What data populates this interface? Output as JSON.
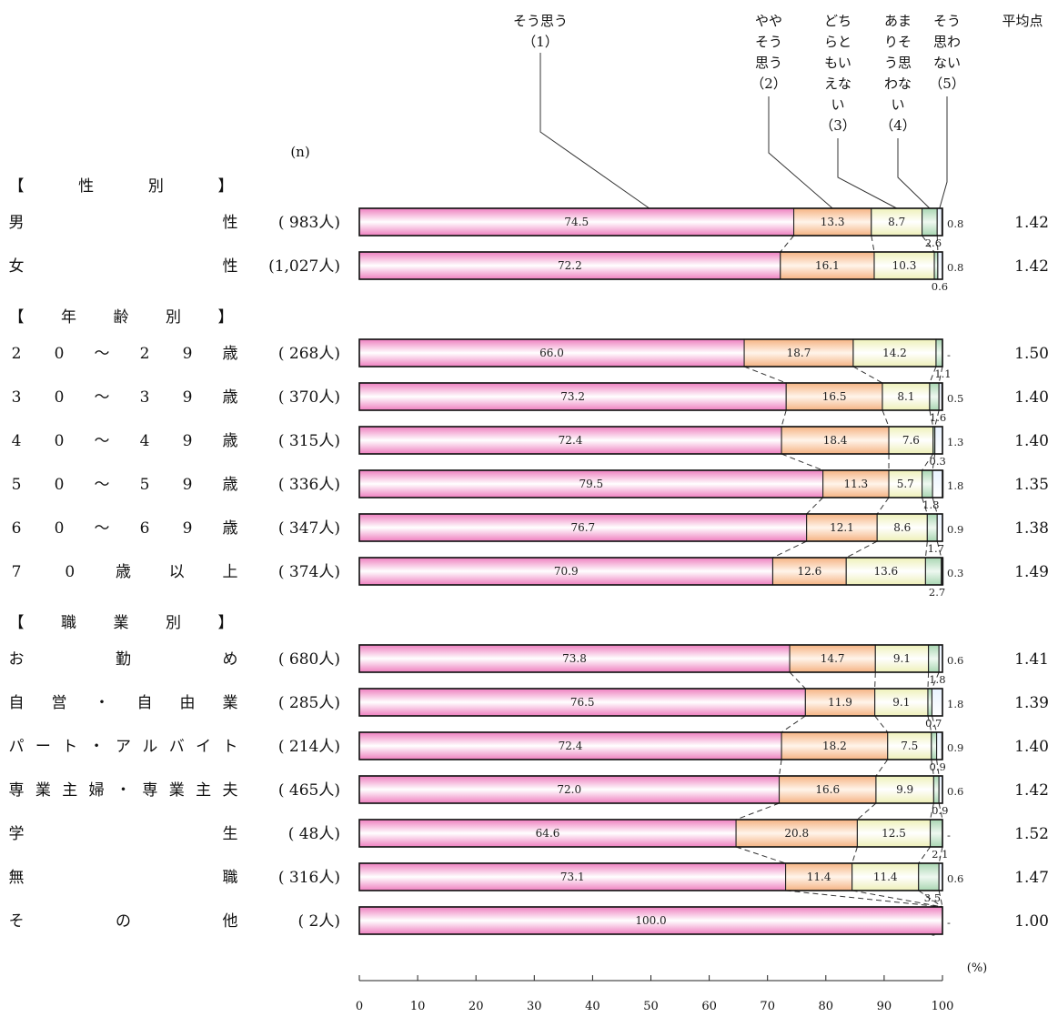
{
  "chart_data": {
    "type": "bar",
    "orientation": "horizontal",
    "stacked": true,
    "n_header": "(n)",
    "mean_header": "平均点",
    "unit_label": "(%)",
    "xlim": [
      0,
      100
    ],
    "x_ticks": [
      "0",
      "10",
      "20",
      "30",
      "40",
      "50",
      "60",
      "70",
      "80",
      "90",
      "100"
    ],
    "legend": [
      {
        "lines": [
          "そう思う",
          "（1）"
        ],
        "color": "#f7bfdc"
      },
      {
        "lines": [
          "やや",
          "そう",
          "思う",
          "（2）"
        ],
        "color": "#fbd6b8"
      },
      {
        "lines": [
          "どち",
          "らと",
          "もい",
          "えな",
          "い",
          "（3）"
        ],
        "color": "#fafadf"
      },
      {
        "lines": [
          "あま",
          "りそ",
          "う思",
          "わな",
          "い",
          "（4）"
        ],
        "color": "#cfe8d2"
      },
      {
        "lines": [
          "そう",
          "思わ",
          "ない",
          "（5）"
        ],
        "color": "#ffffff"
      }
    ],
    "groups": [
      {
        "header": {
          "chars": [
            "【",
            "性",
            "別",
            "】"
          ]
        },
        "rows": [
          {
            "chars": [
              "男",
              "性"
            ],
            "n": "( 983人)",
            "values": [
              74.5,
              13.3,
              8.7,
              2.6,
              0.8
            ],
            "labels": [
              "74.5",
              "13.3",
              "8.7",
              "2.6",
              "0.8"
            ],
            "mean": "1.42"
          },
          {
            "chars": [
              "女",
              "性"
            ],
            "n": "(1,027人)",
            "values": [
              72.2,
              16.1,
              10.3,
              0.6,
              0.8
            ],
            "labels": [
              "72.2",
              "16.1",
              "10.3",
              "0.6",
              "0.8"
            ],
            "mean": "1.42"
          }
        ]
      },
      {
        "header": {
          "chars": [
            "【",
            "年",
            "齢",
            "別",
            "】"
          ]
        },
        "rows": [
          {
            "chars": [
              "2",
              "0",
              "～",
              "2",
              "9",
              "歳"
            ],
            "n": "( 268人)",
            "values": [
              66.0,
              18.7,
              14.2,
              1.1,
              0
            ],
            "labels": [
              "66.0",
              "18.7",
              "14.2",
              "1.1",
              "-"
            ],
            "mean": "1.50"
          },
          {
            "chars": [
              "3",
              "0",
              "～",
              "3",
              "9",
              "歳"
            ],
            "n": "( 370人)",
            "values": [
              73.2,
              16.5,
              8.1,
              1.6,
              0.5
            ],
            "labels": [
              "73.2",
              "16.5",
              "8.1",
              "1.6",
              "0.5"
            ],
            "mean": "1.40"
          },
          {
            "chars": [
              "4",
              "0",
              "～",
              "4",
              "9",
              "歳"
            ],
            "n": "( 315人)",
            "values": [
              72.4,
              18.4,
              7.6,
              0.3,
              1.3
            ],
            "labels": [
              "72.4",
              "18.4",
              "7.6",
              "0.3",
              "1.3"
            ],
            "mean": "1.40"
          },
          {
            "chars": [
              "5",
              "0",
              "～",
              "5",
              "9",
              "歳"
            ],
            "n": "( 336人)",
            "values": [
              79.5,
              11.3,
              5.7,
              1.8,
              1.8
            ],
            "labels": [
              "79.5",
              "11.3",
              "5.7",
              "1.8",
              "1.8"
            ],
            "mean": "1.35"
          },
          {
            "chars": [
              "6",
              "0",
              "～",
              "6",
              "9",
              "歳"
            ],
            "n": "( 347人)",
            "values": [
              76.7,
              12.1,
              8.6,
              1.7,
              0.9
            ],
            "labels": [
              "76.7",
              "12.1",
              "8.6",
              "1.7",
              "0.9"
            ],
            "mean": "1.38"
          },
          {
            "chars": [
              "7",
              "0",
              "歳",
              "以",
              "上"
            ],
            "n": "( 374人)",
            "values": [
              70.9,
              12.6,
              13.6,
              2.7,
              0.3
            ],
            "labels": [
              "70.9",
              "12.6",
              "13.6",
              "2.7",
              "0.3"
            ],
            "mean": "1.49"
          }
        ]
      },
      {
        "header": {
          "chars": [
            "【",
            "職",
            "業",
            "別",
            "】"
          ]
        },
        "rows": [
          {
            "chars": [
              "お",
              "勤",
              "め"
            ],
            "n": "( 680人)",
            "values": [
              73.8,
              14.7,
              9.1,
              1.8,
              0.6
            ],
            "labels": [
              "73.8",
              "14.7",
              "9.1",
              "1.8",
              "0.6"
            ],
            "mean": "1.41"
          },
          {
            "chars": [
              "自",
              "営",
              "・",
              "自",
              "由",
              "業"
            ],
            "n": "( 285人)",
            "values": [
              76.5,
              11.9,
              9.1,
              0.7,
              1.8
            ],
            "labels": [
              "76.5",
              "11.9",
              "9.1",
              "0.7",
              "1.8"
            ],
            "mean": "1.39"
          },
          {
            "chars": [
              "パ",
              "ー",
              "ト",
              "・",
              "ア",
              "ル",
              "バ",
              "イ",
              "ト"
            ],
            "n": "( 214人)",
            "values": [
              72.4,
              18.2,
              7.5,
              0.9,
              0.9
            ],
            "labels": [
              "72.4",
              "18.2",
              "7.5",
              "0.9",
              "0.9"
            ],
            "mean": "1.40"
          },
          {
            "chars": [
              "専",
              "業",
              "主",
              "婦",
              "・",
              "専",
              "業",
              "主",
              "夫"
            ],
            "n": "( 465人)",
            "values": [
              72.0,
              16.6,
              9.9,
              0.9,
              0.6
            ],
            "labels": [
              "72.0",
              "16.6",
              "9.9",
              "0.9",
              "0.6"
            ],
            "mean": "1.42"
          },
          {
            "chars": [
              "学",
              "生"
            ],
            "n": "(   48人)",
            "values": [
              64.6,
              20.8,
              12.5,
              2.1,
              0
            ],
            "labels": [
              "64.6",
              "20.8",
              "12.5",
              "2.1",
              "-"
            ],
            "mean": "1.52"
          },
          {
            "chars": [
              "無",
              "職"
            ],
            "n": "( 316人)",
            "values": [
              73.1,
              11.4,
              11.4,
              3.5,
              0.6
            ],
            "labels": [
              "73.1",
              "11.4",
              "11.4",
              "3.5",
              "0.6"
            ],
            "mean": "1.47"
          },
          {
            "chars": [
              "そ",
              "の",
              "他"
            ],
            "n": "(    2人)",
            "values": [
              100.0,
              0,
              0,
              0,
              0
            ],
            "labels": [
              "100.0",
              "-",
              "-",
              "-",
              "-"
            ],
            "mean": "1.00"
          }
        ]
      }
    ]
  }
}
